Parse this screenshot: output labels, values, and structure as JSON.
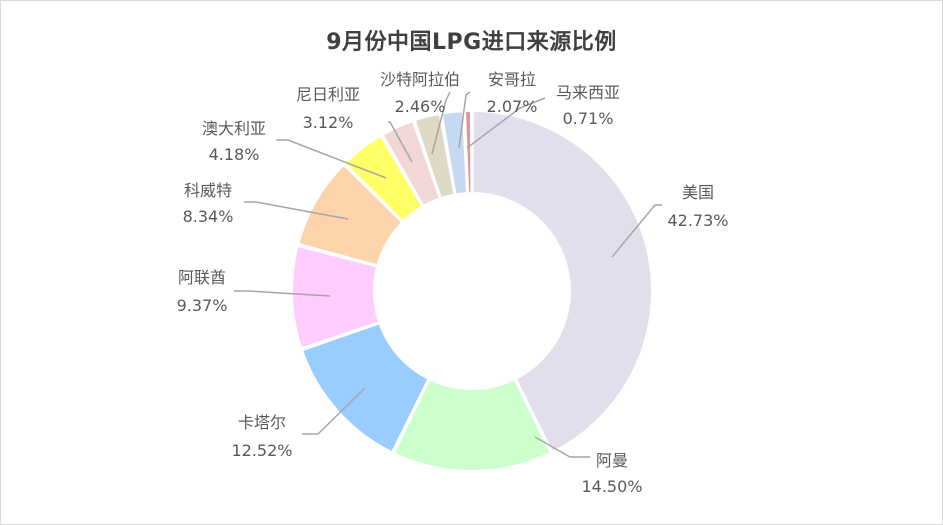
{
  "chart_data": {
    "type": "pie",
    "title": "9月份中国LPG进口来源比例",
    "donut": true,
    "slices": [
      {
        "name": "美国",
        "value": 42.73,
        "label": "42.73%",
        "color": "#e3deec"
      },
      {
        "name": "阿曼",
        "value": 14.5,
        "label": "14.50%",
        "color": "#ccffcc"
      },
      {
        "name": "卡塔尔",
        "value": 12.52,
        "label": "12.52%",
        "color": "#99ccff"
      },
      {
        "name": "阿联酋",
        "value": 9.37,
        "label": "9.37%",
        "color": "#ffccff"
      },
      {
        "name": "科威特",
        "value": 8.34,
        "label": "8.34%",
        "color": "#fdd3ac"
      },
      {
        "name": "澳大利亚",
        "value": 4.18,
        "label": "4.18%",
        "color": "#ffff66"
      },
      {
        "name": "尼日利亚",
        "value": 3.12,
        "label": "3.12%",
        "color": "#f2d7d6"
      },
      {
        "name": "沙特阿拉伯",
        "value": 2.46,
        "label": "2.46%",
        "color": "#ddd9c4"
      },
      {
        "name": "安哥拉",
        "value": 2.07,
        "label": "2.07%",
        "color": "#c5d9f1"
      },
      {
        "name": "马来西亚",
        "value": 0.71,
        "label": "0.71%",
        "color": "#da9694"
      }
    ],
    "legend": "none"
  }
}
